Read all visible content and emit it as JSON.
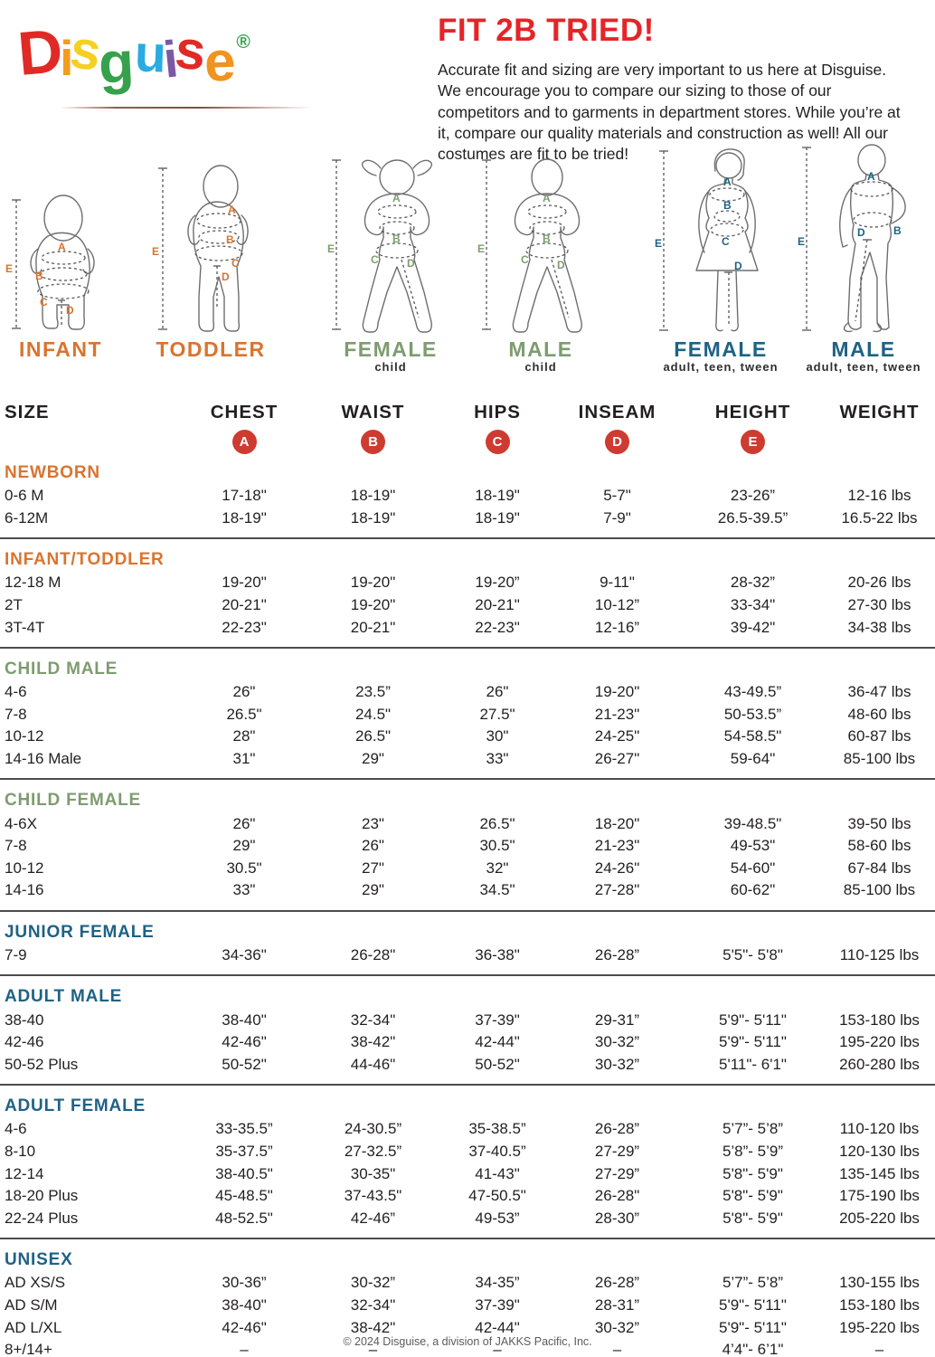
{
  "colors": {
    "orange": "#d9742f",
    "green": "#7e9c6f",
    "blue": "#1e6286",
    "badge_red": "#ce3b31",
    "title_red": "#e42528",
    "logo_rule": "#9b5a4a"
  },
  "logo": {
    "letters": [
      {
        "ch": "D",
        "color": "#e02a25"
      },
      {
        "ch": "i",
        "color": "#f39c1f"
      },
      {
        "ch": "s",
        "color": "#f5d021"
      },
      {
        "ch": "g",
        "color": "#36a14c"
      },
      {
        "ch": "u",
        "color": "#2aabe2"
      },
      {
        "ch": "i",
        "color": "#7c58a4"
      },
      {
        "ch": "s",
        "color": "#e02a25"
      },
      {
        "ch": "e",
        "color": "#f0931f"
      },
      {
        "ch": "®",
        "color": "#36a14c"
      }
    ]
  },
  "header": {
    "title": "FIT 2B TRIED!",
    "paragraph": "Accurate fit and sizing are very important to us here at Disguise. We encourage you to compare our sizing to those of our competitors and to garments in department stores. While you’re at it, compare our quality materials and construction as well! All our costumes are fit to be tried!"
  },
  "figures": [
    {
      "label": "INFANT",
      "sub": "",
      "color": "#d9742f"
    },
    {
      "label": "TODDLER",
      "sub": "",
      "color": "#d9742f"
    },
    {
      "label": "FEMALE",
      "sub": "child",
      "color": "#7e9c6f"
    },
    {
      "label": "MALE",
      "sub": "child",
      "color": "#7e9c6f"
    },
    {
      "label": "FEMALE",
      "sub": "adult, teen, tween",
      "color": "#1e6286"
    },
    {
      "label": "MALE",
      "sub": "adult, teen, tween",
      "color": "#1e6286"
    }
  ],
  "table": {
    "columns": [
      "SIZE",
      "CHEST",
      "WAIST",
      "HIPS",
      "INSEAM",
      "HEIGHT",
      "WEIGHT"
    ],
    "letters": [
      "A",
      "B",
      "C",
      "D",
      "E"
    ],
    "sections": [
      {
        "title": "NEWBORN",
        "color": "orange",
        "rows": [
          [
            "0-6 M",
            "17-18\"",
            "18-19\"",
            "18-19\"",
            "5-7\"",
            "23-26”",
            "12-16 lbs"
          ],
          [
            "6-12M",
            "18-19\"",
            "18-19\"",
            "18-19\"",
            "7-9\"",
            "26.5-39.5”",
            "16.5-22 lbs"
          ]
        ]
      },
      {
        "title": "INFANT/TODDLER",
        "color": "orange",
        "rows": [
          [
            "12-18 M",
            "19-20\"",
            "19-20\"",
            "19-20”",
            "9-11\"",
            "28-32”",
            "20-26 lbs"
          ],
          [
            "2T",
            "20-21\"",
            "19-20\"",
            "20-21\"",
            "10-12”",
            "33-34\"",
            "27-30 lbs"
          ],
          [
            "3T-4T",
            "22-23\"",
            "20-21\"",
            "22-23\"",
            "12-16”",
            "39-42\"",
            "34-38 lbs"
          ]
        ]
      },
      {
        "title": "CHILD MALE",
        "color": "green",
        "rows": [
          [
            "4-6",
            "26\"",
            "23.5”",
            "26\"",
            "19-20\"",
            "43-49.5”",
            "36-47 lbs"
          ],
          [
            "7-8",
            "26.5\"",
            "24.5\"",
            "27.5\"",
            "21-23\"",
            "50-53.5”",
            "48-60 lbs"
          ],
          [
            "10-12",
            "28\"",
            "26.5\"",
            "30\"",
            "24-25\"",
            "54-58.5\"",
            "60-87 lbs"
          ],
          [
            "14-16 Male",
            "31\"",
            "29\"",
            "33\"",
            "26-27\"",
            "59-64\"",
            "85-100 lbs"
          ]
        ]
      },
      {
        "title": "CHILD FEMALE",
        "color": "green",
        "rows": [
          [
            "4-6X",
            "26\"",
            "23\"",
            "26.5\"",
            "18-20\"",
            "39-48.5\"",
            "39-50 lbs"
          ],
          [
            "7-8",
            "29\"",
            "26\"",
            "30.5\"",
            "21-23\"",
            "49-53\"",
            "58-60 lbs"
          ],
          [
            "10-12",
            "30.5\"",
            "27\"",
            "32\"",
            "24-26\"",
            "54-60\"",
            "67-84 lbs"
          ],
          [
            "14-16",
            "33\"",
            "29\"",
            "34.5\"",
            "27-28\"",
            "60-62\"",
            "85-100 lbs"
          ]
        ]
      },
      {
        "title": "JUNIOR FEMALE",
        "color": "blue",
        "rows": [
          [
            "7-9",
            "34-36\"",
            "26-28\"",
            "36-38\"",
            "26-28”",
            "5'5\"- 5'8\"",
            "110-125 lbs"
          ]
        ]
      },
      {
        "title": "ADULT MALE",
        "color": "blue",
        "rows": [
          [
            "38-40",
            "38-40\"",
            "32-34\"",
            "37-39\"",
            "29-31”",
            "5'9\"- 5'11\"",
            "153-180 lbs"
          ],
          [
            "42-46",
            "42-46\"",
            "38-42\"",
            "42-44\"",
            "30-32”",
            "5'9\"- 5'11\"",
            "195-220 lbs"
          ],
          [
            "50-52 Plus",
            "50-52\"",
            "44-46\"",
            "50-52\"",
            "30-32”",
            "5'11\"- 6'1\"",
            "260-280 lbs"
          ]
        ]
      },
      {
        "title": "ADULT FEMALE",
        "color": "blue",
        "rows": [
          [
            "4-6",
            "33-35.5”",
            "24-30.5”",
            "35-38.5”",
            "26-28”",
            "5’7”- 5’8”",
            "110-120 lbs"
          ],
          [
            "8-10",
            "35-37.5”",
            "27-32.5”",
            "37-40.5”",
            "27-29”",
            "5’8”- 5’9”",
            "120-130 lbs"
          ],
          [
            "12-14",
            "38-40.5\"",
            "30-35\"",
            "41-43\"",
            "27-29”",
            "5'8\"- 5'9\"",
            "135-145 lbs"
          ],
          [
            "18-20 Plus",
            "45-48.5\"",
            "37-43.5\"",
            "47-50.5\"",
            "26-28\"",
            "5'8\"- 5'9\"",
            "175-190 lbs"
          ],
          [
            "22-24 Plus",
            "48-52.5\"",
            "42-46”",
            "49-53”",
            "28-30”",
            "5'8\"- 5'9\"",
            "205-220 lbs"
          ]
        ]
      },
      {
        "title": "UNISEX",
        "color": "blue",
        "rows": [
          [
            "AD XS/S",
            "30-36”",
            "30-32”",
            "34-35”",
            "26-28”",
            "5’7”- 5’8”",
            "130-155 lbs"
          ],
          [
            "AD S/M",
            "38-40\"",
            "32-34\"",
            "37-39\"",
            "28-31”",
            "5'9\"- 5'11\"",
            "153-180 lbs"
          ],
          [
            "AD L/XL",
            "42-46\"",
            "38-42\"",
            "42-44\"",
            "30-32”",
            "5'9\"- 5'11\"",
            "195-220 lbs"
          ],
          [
            "8+/14+",
            "–",
            "–",
            "–",
            "–",
            "4’4\"- 6’1\"",
            "–"
          ]
        ]
      }
    ]
  },
  "footer": "© 2024 Disguise, a division of JAKKS Pacific, Inc."
}
